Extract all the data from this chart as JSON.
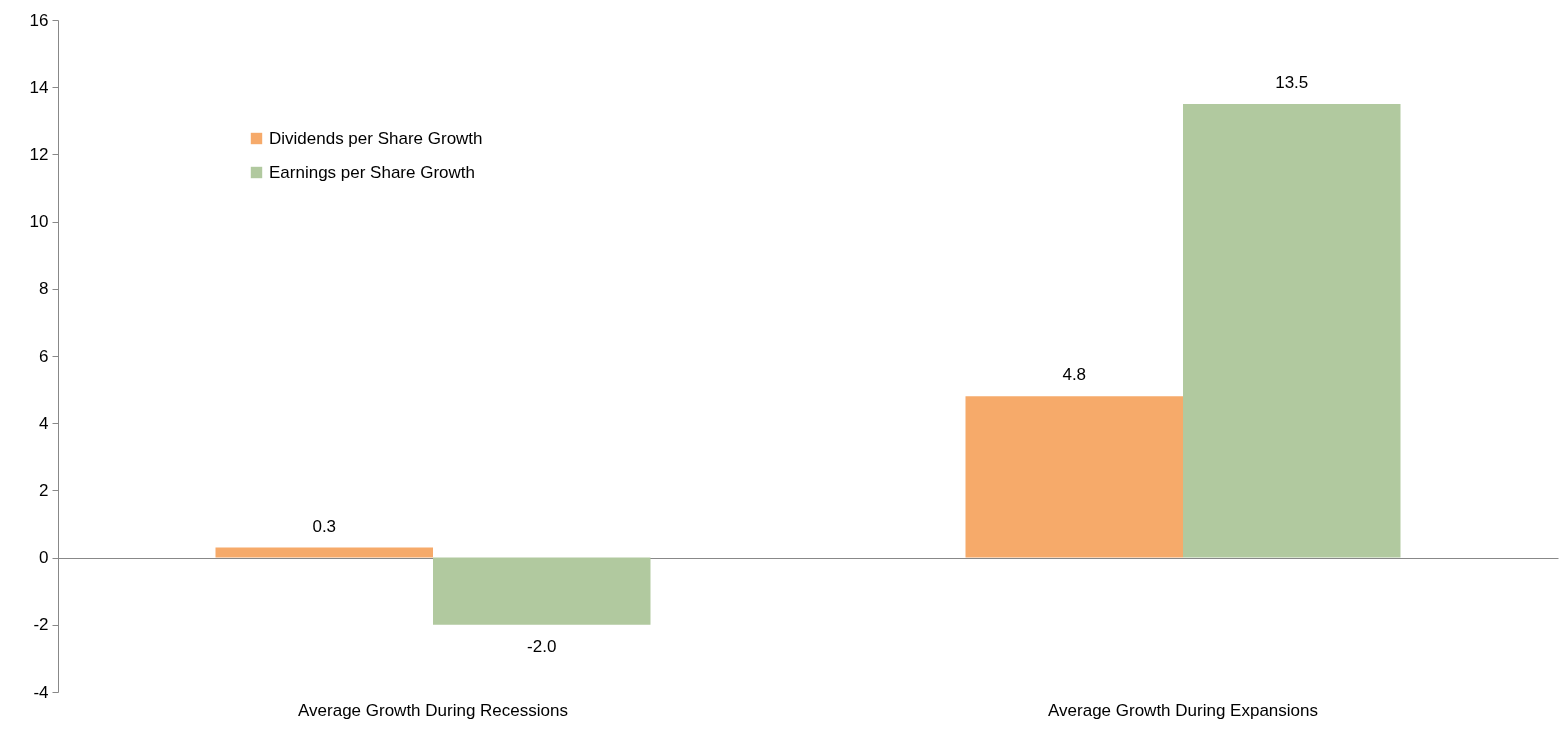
{
  "chart_data": {
    "type": "bar",
    "categories": [
      "Average Growth During Recessions",
      "Average Growth During Expansions"
    ],
    "series": [
      {
        "name": "Dividends per Share Growth",
        "color": "#f6aa6a",
        "values": [
          0.3,
          4.8
        ],
        "value_labels": [
          "0.3",
          "4.8"
        ]
      },
      {
        "name": "Earnings per Share Growth",
        "color": "#b1c99f",
        "values": [
          -2.0,
          13.5
        ],
        "value_labels": [
          "-2.0",
          "13.5"
        ]
      }
    ],
    "ylim": [
      -4,
      16
    ],
    "yticks": [
      -4,
      -2,
      0,
      2,
      4,
      6,
      8,
      10,
      12,
      14,
      16
    ],
    "legend": "top left"
  }
}
